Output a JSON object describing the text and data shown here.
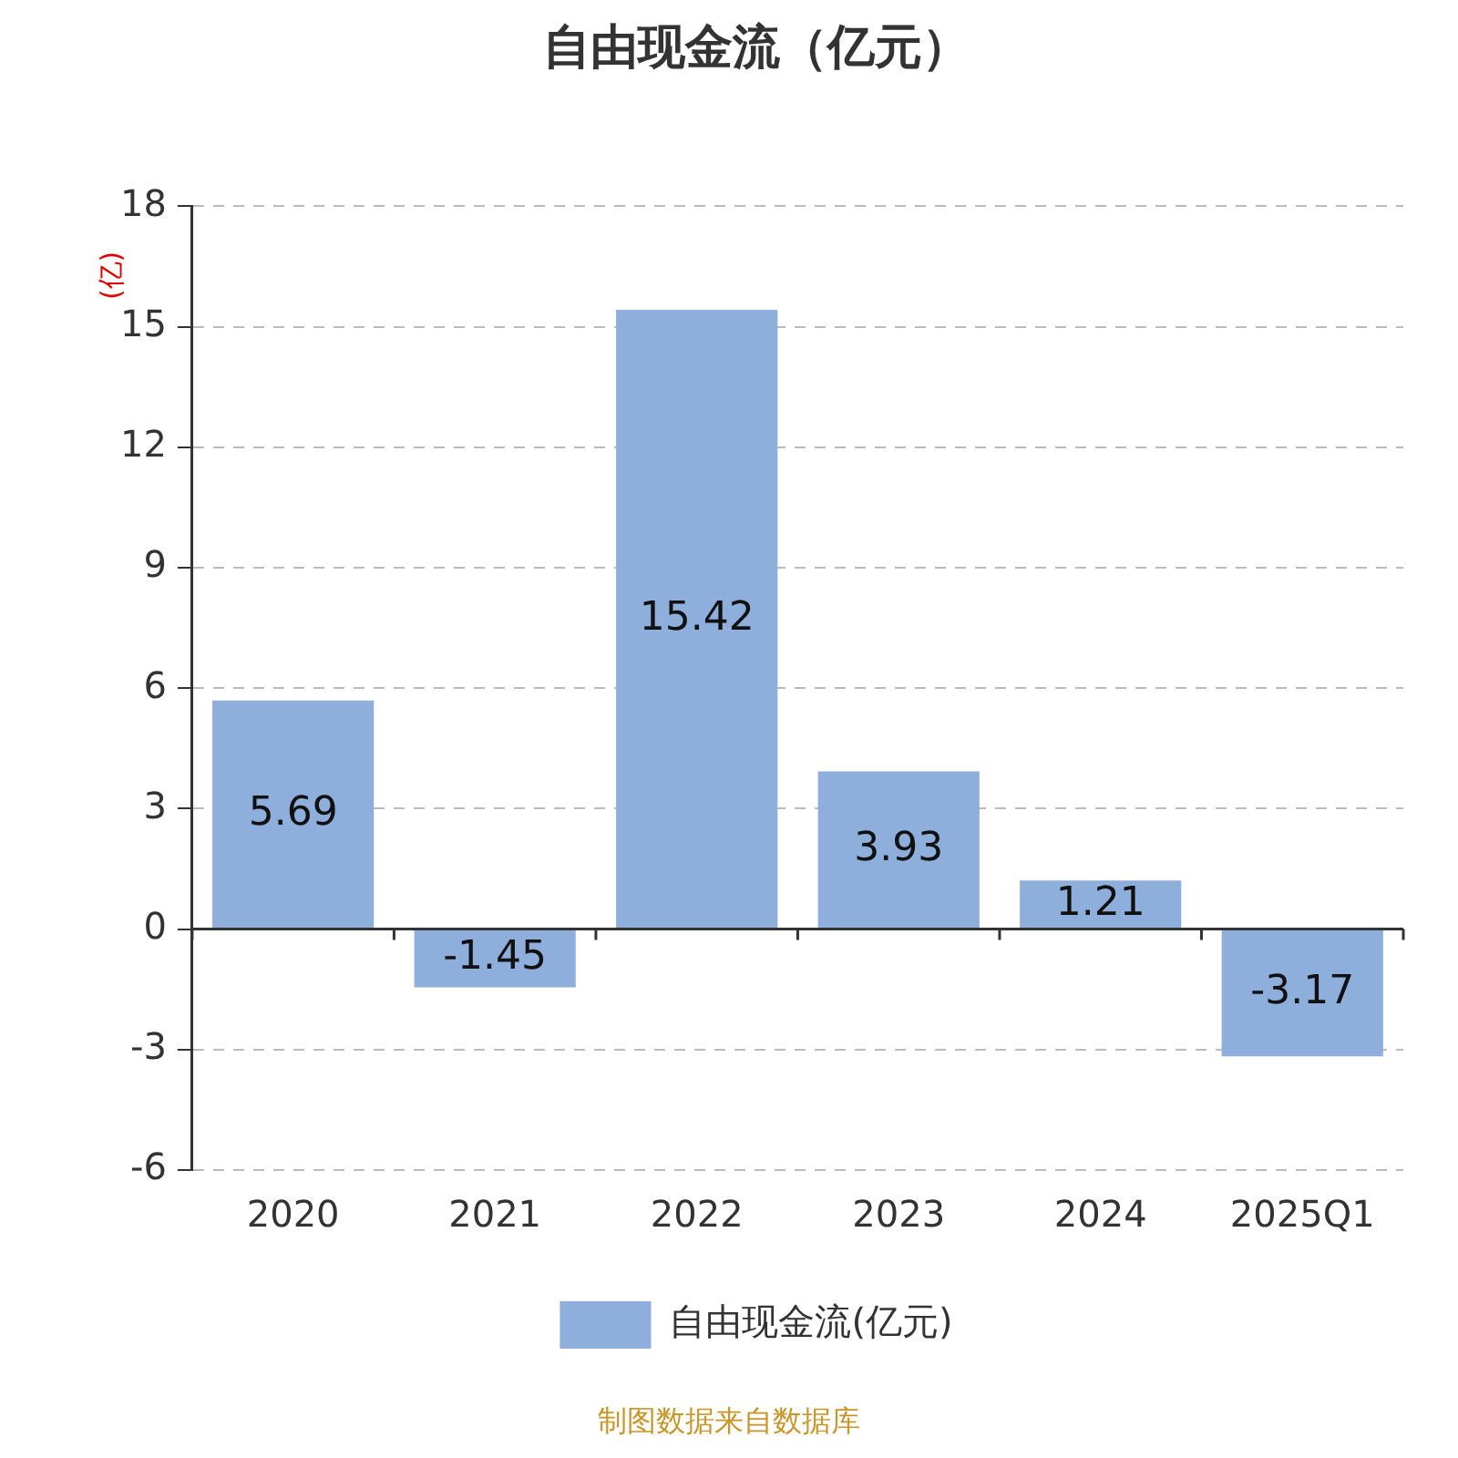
{
  "chart_data": {
    "type": "bar",
    "title": "自由现金流（亿元）",
    "ylabel": "(亿)",
    "categories": [
      "2020",
      "2021",
      "2022",
      "2023",
      "2024",
      "2025Q1"
    ],
    "series": [
      {
        "name": "自由现金流(亿元)",
        "color": "#8eaedb",
        "values": [
          5.69,
          -1.45,
          15.42,
          3.93,
          1.21,
          -3.17
        ]
      }
    ],
    "ylim": [
      -6,
      18
    ],
    "yticks": [
      -6,
      -3,
      0,
      3,
      6,
      9,
      12,
      15,
      18
    ],
    "grid": "y",
    "legend": "bottom",
    "data_labels": true,
    "annotations": [
      "制图数据来自数据库"
    ]
  }
}
